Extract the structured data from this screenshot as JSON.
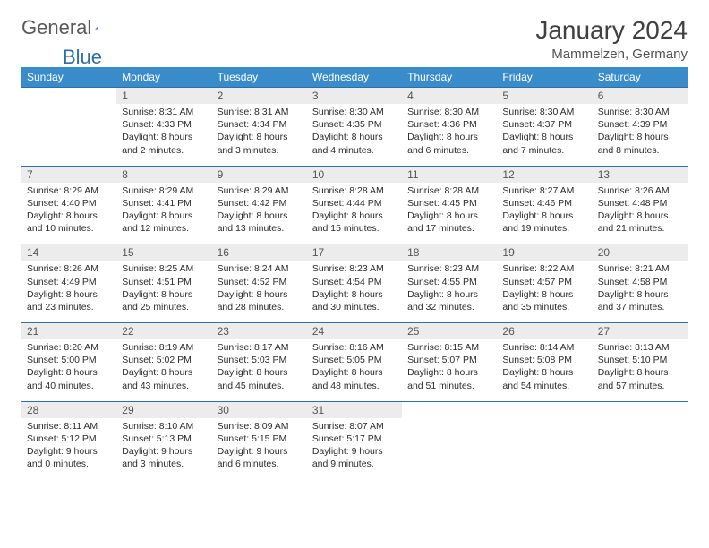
{
  "brand": {
    "part1": "General",
    "part2": "Blue"
  },
  "title": "January 2024",
  "location": "Mammelzen, Germany",
  "dayNames": [
    "Sunday",
    "Monday",
    "Tuesday",
    "Wednesday",
    "Thursday",
    "Friday",
    "Saturday"
  ],
  "colors": {
    "headerBlue": "#3a8bc9",
    "dateBg": "#ececec",
    "ruleBlue": "#2f6fa7",
    "text": "#333333",
    "brandGray": "#5a5a5a",
    "brandBlue": "#2f6fa7"
  },
  "weeks": [
    {
      "nums": [
        "",
        "1",
        "2",
        "3",
        "4",
        "5",
        "6"
      ],
      "cells": [
        "",
        "Sunrise: 8:31 AM\nSunset: 4:33 PM\nDaylight: 8 hours and 2 minutes.",
        "Sunrise: 8:31 AM\nSunset: 4:34 PM\nDaylight: 8 hours and 3 minutes.",
        "Sunrise: 8:30 AM\nSunset: 4:35 PM\nDaylight: 8 hours and 4 minutes.",
        "Sunrise: 8:30 AM\nSunset: 4:36 PM\nDaylight: 8 hours and 6 minutes.",
        "Sunrise: 8:30 AM\nSunset: 4:37 PM\nDaylight: 8 hours and 7 minutes.",
        "Sunrise: 8:30 AM\nSunset: 4:39 PM\nDaylight: 8 hours and 8 minutes."
      ]
    },
    {
      "nums": [
        "7",
        "8",
        "9",
        "10",
        "11",
        "12",
        "13"
      ],
      "cells": [
        "Sunrise: 8:29 AM\nSunset: 4:40 PM\nDaylight: 8 hours and 10 minutes.",
        "Sunrise: 8:29 AM\nSunset: 4:41 PM\nDaylight: 8 hours and 12 minutes.",
        "Sunrise: 8:29 AM\nSunset: 4:42 PM\nDaylight: 8 hours and 13 minutes.",
        "Sunrise: 8:28 AM\nSunset: 4:44 PM\nDaylight: 8 hours and 15 minutes.",
        "Sunrise: 8:28 AM\nSunset: 4:45 PM\nDaylight: 8 hours and 17 minutes.",
        "Sunrise: 8:27 AM\nSunset: 4:46 PM\nDaylight: 8 hours and 19 minutes.",
        "Sunrise: 8:26 AM\nSunset: 4:48 PM\nDaylight: 8 hours and 21 minutes."
      ]
    },
    {
      "nums": [
        "14",
        "15",
        "16",
        "17",
        "18",
        "19",
        "20"
      ],
      "cells": [
        "Sunrise: 8:26 AM\nSunset: 4:49 PM\nDaylight: 8 hours and 23 minutes.",
        "Sunrise: 8:25 AM\nSunset: 4:51 PM\nDaylight: 8 hours and 25 minutes.",
        "Sunrise: 8:24 AM\nSunset: 4:52 PM\nDaylight: 8 hours and 28 minutes.",
        "Sunrise: 8:23 AM\nSunset: 4:54 PM\nDaylight: 8 hours and 30 minutes.",
        "Sunrise: 8:23 AM\nSunset: 4:55 PM\nDaylight: 8 hours and 32 minutes.",
        "Sunrise: 8:22 AM\nSunset: 4:57 PM\nDaylight: 8 hours and 35 minutes.",
        "Sunrise: 8:21 AM\nSunset: 4:58 PM\nDaylight: 8 hours and 37 minutes."
      ]
    },
    {
      "nums": [
        "21",
        "22",
        "23",
        "24",
        "25",
        "26",
        "27"
      ],
      "cells": [
        "Sunrise: 8:20 AM\nSunset: 5:00 PM\nDaylight: 8 hours and 40 minutes.",
        "Sunrise: 8:19 AM\nSunset: 5:02 PM\nDaylight: 8 hours and 43 minutes.",
        "Sunrise: 8:17 AM\nSunset: 5:03 PM\nDaylight: 8 hours and 45 minutes.",
        "Sunrise: 8:16 AM\nSunset: 5:05 PM\nDaylight: 8 hours and 48 minutes.",
        "Sunrise: 8:15 AM\nSunset: 5:07 PM\nDaylight: 8 hours and 51 minutes.",
        "Sunrise: 8:14 AM\nSunset: 5:08 PM\nDaylight: 8 hours and 54 minutes.",
        "Sunrise: 8:13 AM\nSunset: 5:10 PM\nDaylight: 8 hours and 57 minutes."
      ]
    },
    {
      "nums": [
        "28",
        "29",
        "30",
        "31",
        "",
        "",
        ""
      ],
      "cells": [
        "Sunrise: 8:11 AM\nSunset: 5:12 PM\nDaylight: 9 hours and 0 minutes.",
        "Sunrise: 8:10 AM\nSunset: 5:13 PM\nDaylight: 9 hours and 3 minutes.",
        "Sunrise: 8:09 AM\nSunset: 5:15 PM\nDaylight: 9 hours and 6 minutes.",
        "Sunrise: 8:07 AM\nSunset: 5:17 PM\nDaylight: 9 hours and 9 minutes.",
        "",
        "",
        ""
      ]
    }
  ]
}
